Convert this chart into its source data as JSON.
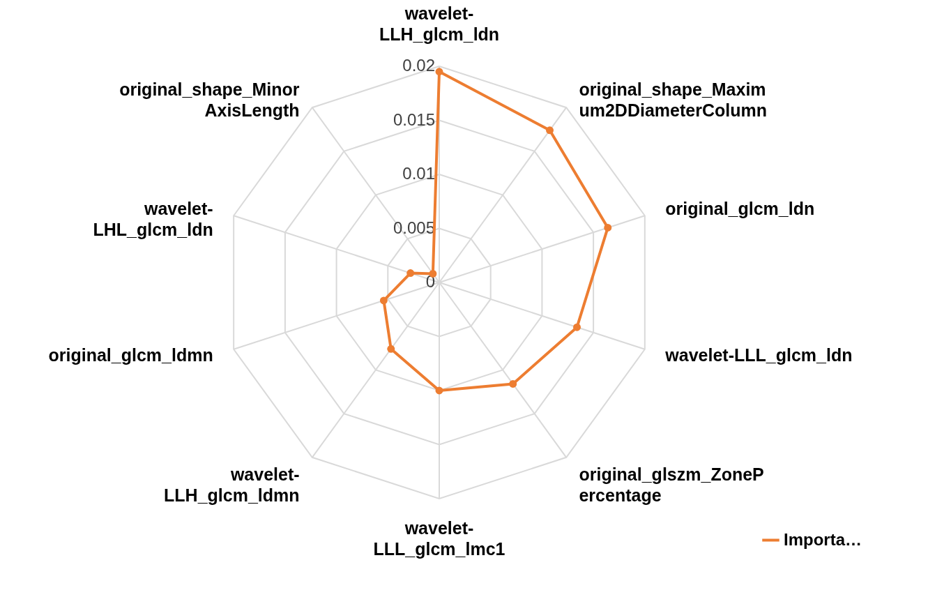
{
  "chart_data": {
    "type": "radar",
    "categories": [
      "wavelet-\nLLH_glcm_ldn",
      "original_shape_Maxim\num2DDiameterColumn",
      "original_glcm_ldn",
      "wavelet-LLL_glcm_ldn",
      "original_glszm_ZoneP\nercentage",
      "wavelet-\nLLL_glcm_lmc1",
      "wavelet-\nLLH_glcm_ldmn",
      "original_glcm_ldmn",
      "wavelet-\nLHL_glcm_ldn",
      "original_shape_Minor\nAxisLength"
    ],
    "series": [
      {
        "name": "Importa…",
        "color": "#ed7d31",
        "values": [
          0.0195,
          0.0174,
          0.0164,
          0.0134,
          0.0116,
          0.01,
          0.0076,
          0.0054,
          0.0028,
          0.001
        ]
      }
    ],
    "ylim": [
      0,
      0.02
    ],
    "yticks": [
      0,
      0.005,
      0.01,
      0.015,
      0.02
    ],
    "grid": true,
    "marker": "circle",
    "legend": "bottom right"
  }
}
